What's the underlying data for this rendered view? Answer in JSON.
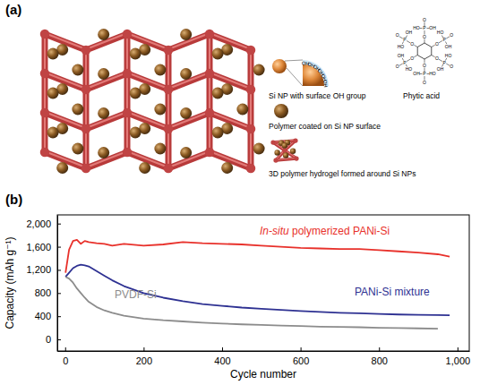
{
  "diagram": {
    "panel_label": "(a)",
    "si_np_label": "Si NP with surface OH group",
    "surface_groups": [
      "OH",
      "OH",
      "OH",
      "OH",
      "OH",
      "OH"
    ],
    "phytic_acid_label": "Phytic acid",
    "phytic_acid_groups": {
      "linker": "O",
      "center": "P",
      "oxo": "O",
      "hydroxyls": [
        "HO",
        "OH"
      ]
    },
    "coated_np_label": "Polymer coated on Si NP surface",
    "hydrogel_label": "3D polymer hydrogel formed around Si NPs"
  },
  "chart_data": {
    "panel_label": "(b)",
    "type": "line",
    "x_label": "Cycle number",
    "y_label": "Capacity (mAh g⁻¹)",
    "xlim": [
      -20,
      1030
    ],
    "ylim": [
      -200,
      2150
    ],
    "xticks": [
      0,
      200,
      400,
      600,
      800,
      {
        "value": 1000,
        "label": "1,000"
      }
    ],
    "yticks": [
      0,
      400,
      800,
      {
        "value": 1200,
        "label": "1,200"
      },
      {
        "value": 1600,
        "label": "1,600"
      },
      {
        "value": 2000,
        "label": "2,000"
      }
    ],
    "x": [
      1,
      10,
      20,
      30,
      40,
      50,
      60,
      80,
      100,
      120,
      150,
      200,
      250,
      300,
      350,
      400,
      450,
      500,
      550,
      600,
      650,
      700,
      750,
      800,
      850,
      900,
      950,
      980
    ],
    "series": [
      {
        "name": "In-situ polymerized PANi-Si",
        "color": "#e8312b",
        "values": [
          1150,
          1550,
          1700,
          1720,
          1650,
          1700,
          1680,
          1660,
          1650,
          1620,
          1650,
          1620,
          1640,
          1680,
          1660,
          1650,
          1640,
          1620,
          1600,
          1580,
          1570,
          1560,
          1560,
          1540,
          1520,
          1500,
          1470,
          1430
        ]
      },
      {
        "name": "PANi-Si mixture",
        "color": "#2e3192",
        "values": [
          1080,
          1150,
          1230,
          1270,
          1290,
          1280,
          1260,
          1180,
          1100,
          1020,
          920,
          800,
          720,
          660,
          610,
          580,
          550,
          530,
          510,
          490,
          475,
          460,
          450,
          440,
          430,
          425,
          420,
          415
        ]
      },
      {
        "name": "PVDF-Si",
        "color": "#8c8c8c",
        "values": [
          1080,
          1050,
          980,
          880,
          800,
          720,
          650,
          560,
          500,
          460,
          410,
          360,
          330,
          310,
          290,
          275,
          260,
          250,
          240,
          230,
          220,
          215,
          210,
          200,
          195,
          190,
          185,
          null
        ]
      }
    ]
  }
}
